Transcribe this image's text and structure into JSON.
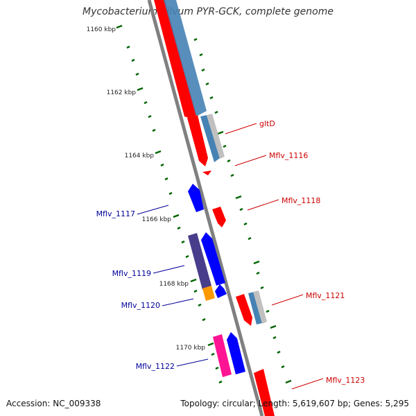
{
  "header": {
    "title": "Mycobacterium gilvum PYR-GCK, complete genome"
  },
  "footer": {
    "accession": "Accession: NC_009338",
    "summary": "Topology: circular; Length: 5,619,607 bp; Genes: 5,295"
  },
  "scale": {
    "labels": [
      "1160 kbp",
      "1162 kbp",
      "1164 kbp",
      "1166 kbp",
      "1168 kbp",
      "1170 kbp"
    ]
  },
  "genes": {
    "forward": [
      {
        "name": "gltD",
        "color": "#cc0000"
      },
      {
        "name": "Mflv_1116",
        "color": "#cc0000"
      },
      {
        "name": "Mflv_1118",
        "color": "#cc0000"
      },
      {
        "name": "Mflv_1121",
        "color": "#cc0000"
      },
      {
        "name": "Mflv_1123",
        "color": "#cc0000"
      }
    ],
    "reverse": [
      {
        "name": "Mflv_1117",
        "color": "#000099"
      },
      {
        "name": "Mflv_1119",
        "color": "#000099"
      },
      {
        "name": "Mflv_1120",
        "color": "#000099"
      },
      {
        "name": "Mflv_1122",
        "color": "#000099"
      }
    ]
  },
  "colors": {
    "forward_cds": "#ff0000",
    "reverse_cds": "#0000ff",
    "steelblue_feature": "#4682b4",
    "grey_feature": "#c0c0c0",
    "purple_feature": "#483d8b",
    "orange_feature": "#ff9900",
    "pink_feature": "#ff1493",
    "backbone": "#808080",
    "ticks": "#006400"
  }
}
